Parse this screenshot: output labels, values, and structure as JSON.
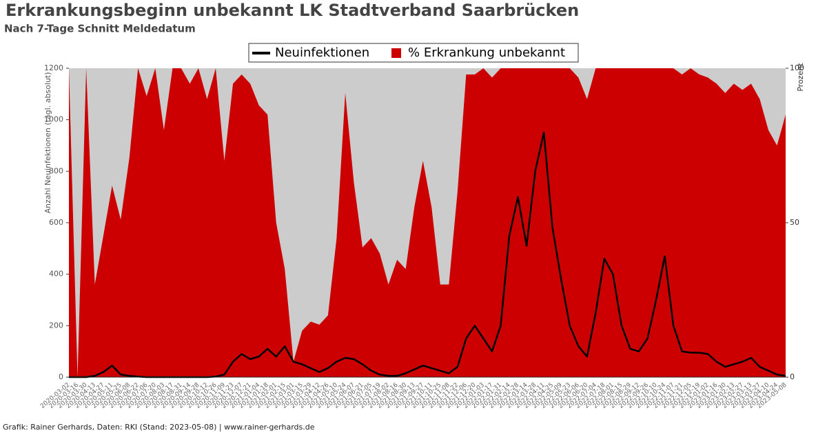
{
  "chart_data": {
    "type": "bar-area-line",
    "title": "Erkrankungsbeginn unbekannt LK Stadtverband Saarbrücken",
    "subtitle": "Nach 7-Tage Schnitt Meldedatum",
    "ylabel": "Anzahl Neuinfektionen (tägl. absolut)",
    "y2label": "Prozent",
    "footer": "Grafik: Rainer Gerhards, Daten: RKI (Stand: 2023-05-08) | www.rainer-gerhards.de",
    "categories": [
      "2020-03-02",
      "2020-03-16",
      "2020-03-30",
      "2020-04-13",
      "2020-04-27",
      "2020-05-11",
      "2020-05-25",
      "2020-06-08",
      "2020-06-22",
      "2020-07-06",
      "2020-07-20",
      "2020-08-03",
      "2020-08-17",
      "2020-08-31",
      "2020-09-14",
      "2020-09-28",
      "2020-10-12",
      "2020-10-26",
      "2020-11-09",
      "2020-11-23",
      "2020-12-07",
      "2020-12-21",
      "2021-01-04",
      "2021-01-18",
      "2021-02-01",
      "2021-02-15",
      "2021-03-01",
      "2021-03-15",
      "2021-03-29",
      "2021-04-12",
      "2021-04-26",
      "2021-05-10",
      "2021-05-24",
      "2021-06-07",
      "2021-06-21",
      "2021-07-05",
      "2021-07-19",
      "2021-08-02",
      "2021-08-16",
      "2021-08-30",
      "2021-09-13",
      "2021-09-27",
      "2021-10-11",
      "2021-10-25",
      "2021-11-08",
      "2021-11-22",
      "2021-12-06",
      "2021-12-20",
      "2022-01-03",
      "2022-01-17",
      "2022-01-31",
      "2022-02-14",
      "2022-02-28",
      "2022-03-14",
      "2022-03-28",
      "2022-04-11",
      "2022-04-25",
      "2022-05-09",
      "2022-05-23",
      "2022-06-06",
      "2022-06-20",
      "2022-07-04",
      "2022-07-18",
      "2022-08-01",
      "2022-08-15",
      "2022-08-29",
      "2022-09-12",
      "2022-09-26",
      "2022-10-10",
      "2022-10-24",
      "2022-11-07",
      "2022-11-21",
      "2022-12-05",
      "2022-12-19",
      "2023-01-02",
      "2023-01-16",
      "2023-01-30",
      "2023-02-13",
      "2023-02-27",
      "2023-03-13",
      "2023-03-27",
      "2023-04-10",
      "2023-04-24",
      "2023-05-08"
    ],
    "series": [
      {
        "name": "Neuinfektionen",
        "color": "#000000",
        "axis": "y",
        "values": [
          0,
          0,
          0,
          5,
          20,
          45,
          10,
          5,
          2,
          0,
          0,
          0,
          0,
          0,
          0,
          0,
          0,
          2,
          10,
          60,
          90,
          70,
          80,
          110,
          80,
          120,
          60,
          50,
          35,
          20,
          35,
          60,
          75,
          70,
          50,
          25,
          10,
          5,
          5,
          15,
          30,
          45,
          35,
          25,
          15,
          40,
          150,
          200,
          150,
          100,
          200,
          550,
          700,
          510,
          800,
          950,
          580,
          380,
          200,
          120,
          80,
          250,
          460,
          400,
          200,
          110,
          100,
          150,
          300,
          470,
          200,
          100,
          95,
          95,
          90,
          60,
          40,
          50,
          60,
          75,
          40,
          25,
          10,
          5
        ]
      },
      {
        "name": "% Erkrankung unbekannt",
        "color": "#cc0000",
        "axis": "y2",
        "values": [
          100,
          0,
          100,
          30,
          46,
          62,
          51,
          71,
          100,
          91,
          100,
          80,
          100,
          100,
          95,
          100,
          90,
          100,
          70,
          95,
          98,
          95,
          88,
          85,
          50,
          35,
          5,
          15,
          18,
          17,
          20,
          45,
          92,
          63,
          42,
          45,
          40,
          30,
          38,
          35,
          55,
          70,
          55,
          30,
          30,
          60,
          98,
          98,
          100,
          97,
          100,
          100,
          100,
          100,
          100,
          100,
          100,
          100,
          100,
          97,
          90,
          100,
          100,
          100,
          100,
          100,
          100,
          100,
          100,
          100,
          100,
          98,
          100,
          98,
          97,
          95,
          92,
          95,
          93,
          95,
          90,
          80,
          75,
          85
        ]
      }
    ],
    "ylim": [
      0,
      1200
    ],
    "yticks": [
      0,
      200,
      400,
      600,
      800,
      1000,
      1200
    ],
    "y2lim": [
      0,
      100
    ],
    "y2ticks": [
      0,
      50,
      100
    ],
    "background": "#cccccc",
    "legend": "top"
  }
}
